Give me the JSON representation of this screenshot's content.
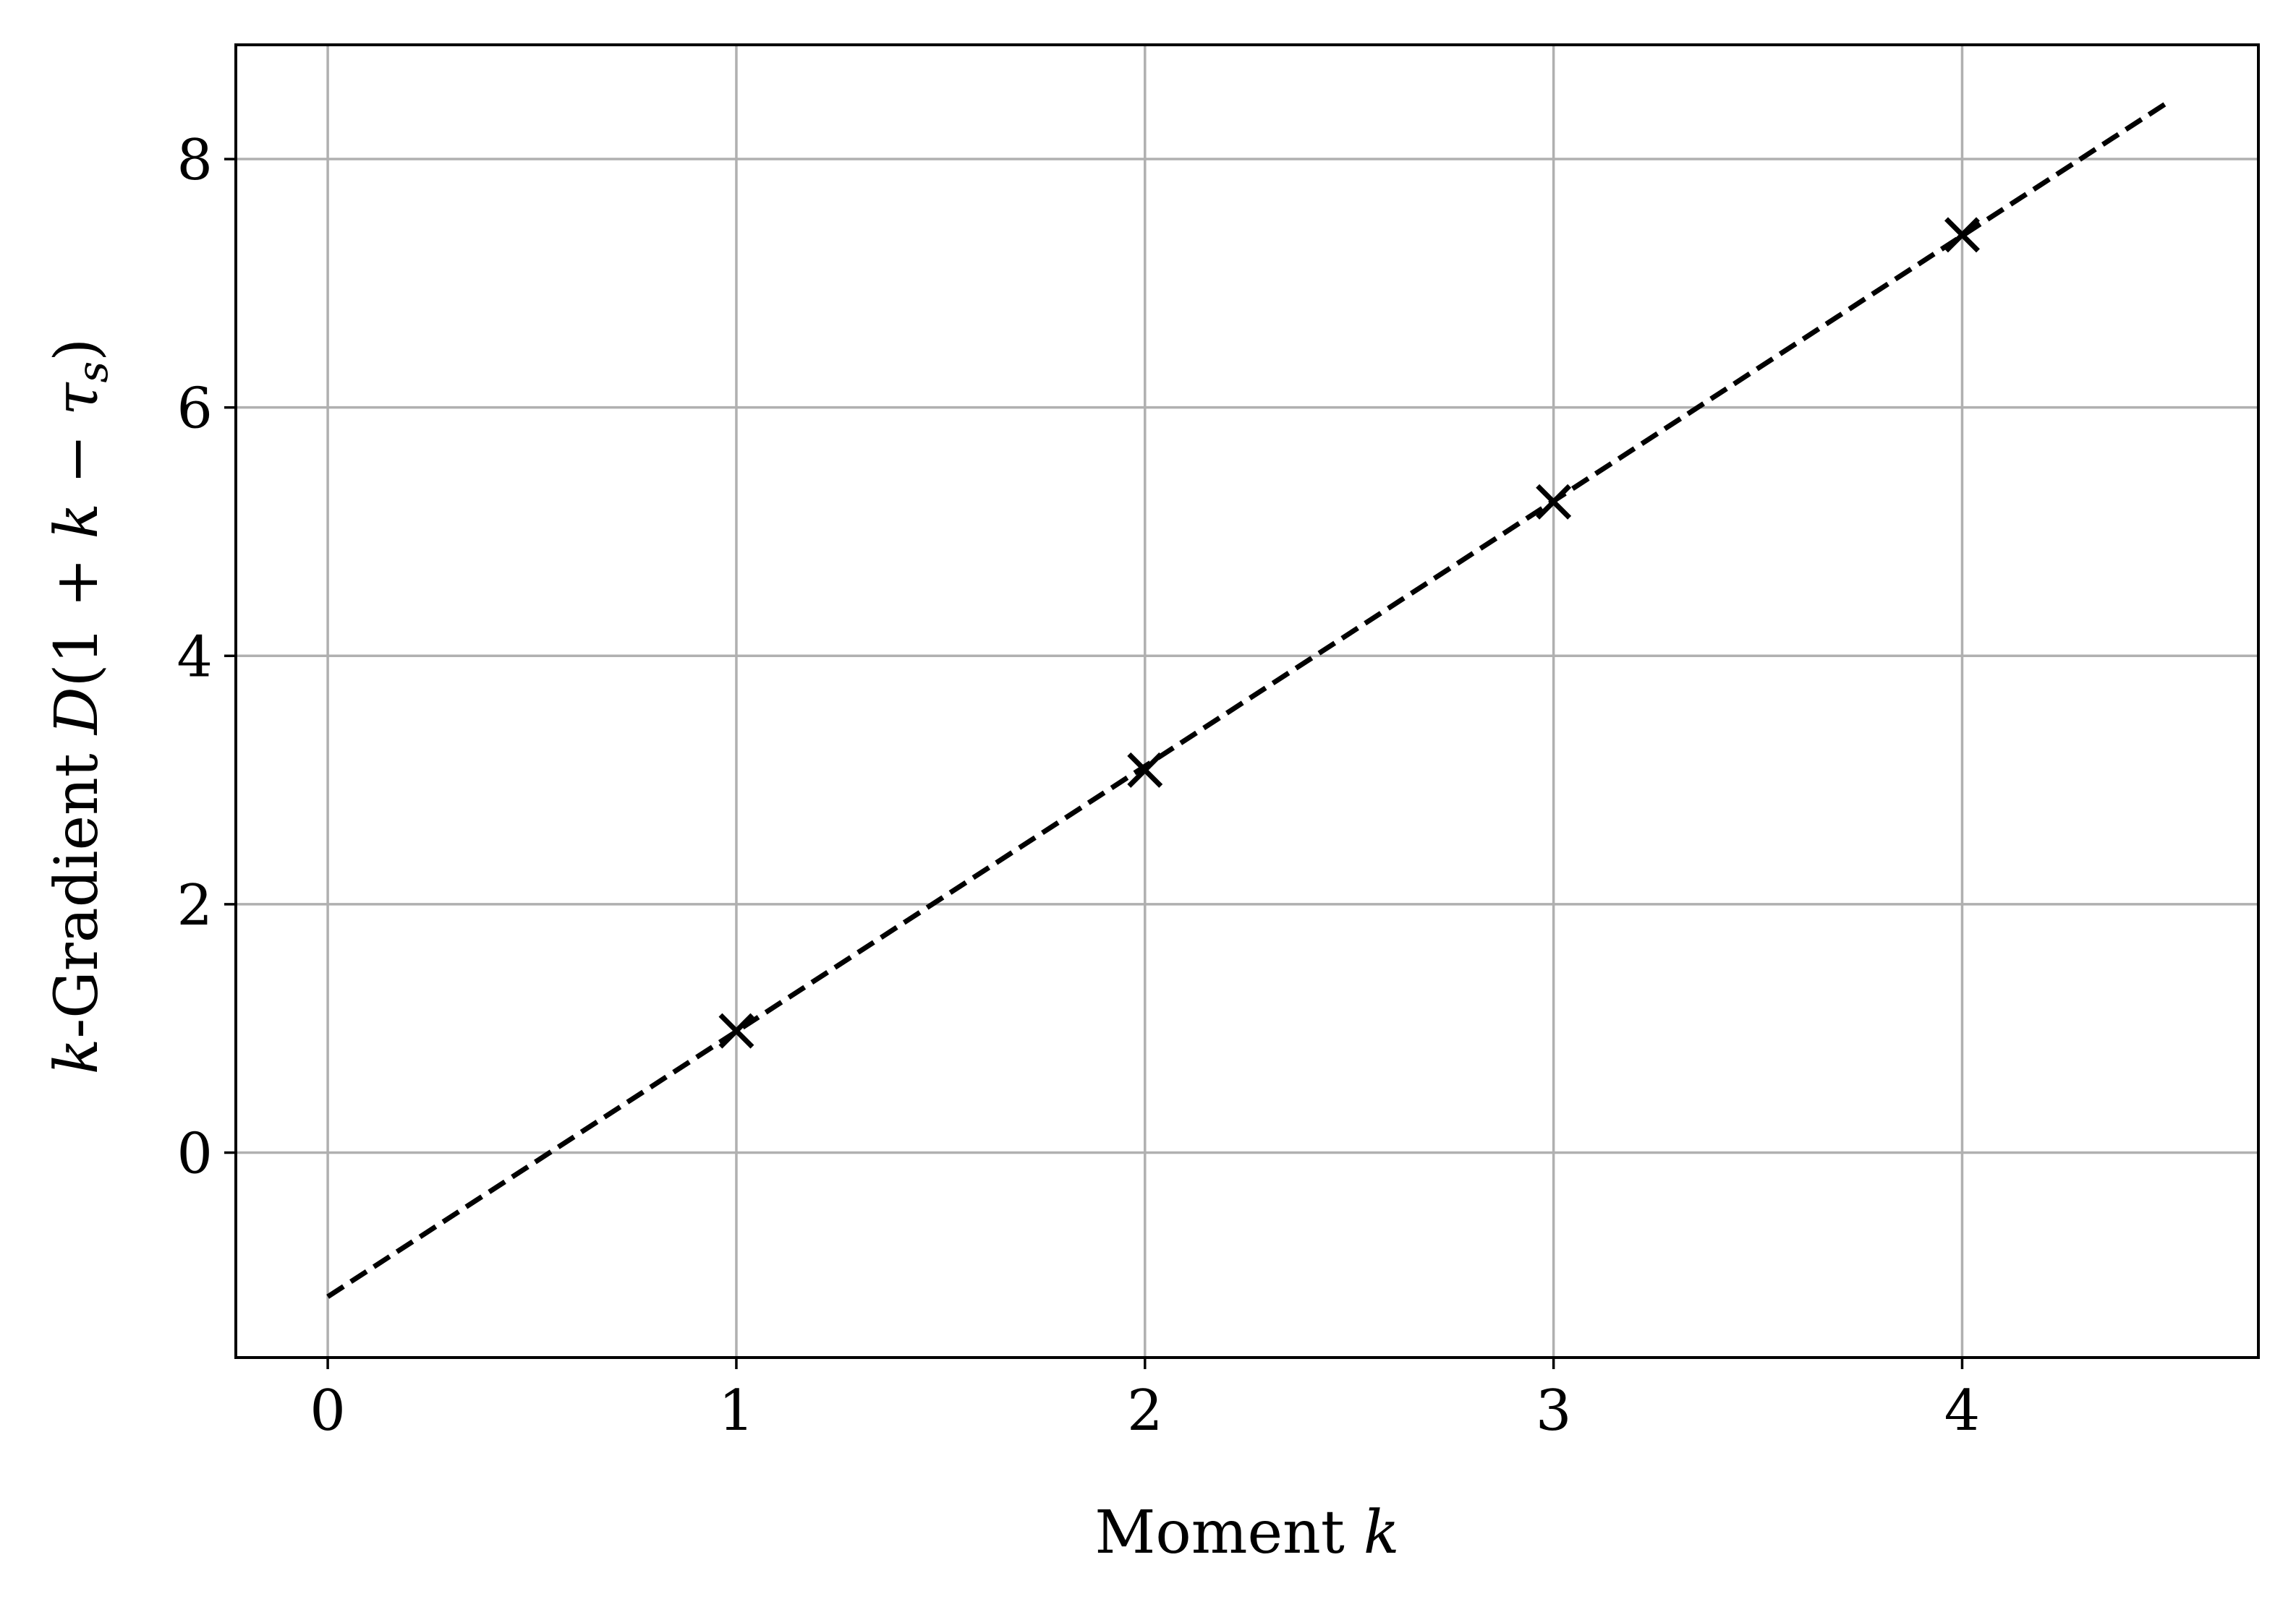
{
  "chart_data": {
    "type": "scatter",
    "title": "",
    "xlabel": "Moment k",
    "xlabel_parts": {
      "text": "Moment ",
      "var": "k"
    },
    "ylabel": "k-Gradient D(1 + k − τs)",
    "ylabel_parts": {
      "k": "k",
      "dash_text": "-Gradient ",
      "D": "D",
      "open": "(1 + ",
      "k2": "k",
      "minus": " − ",
      "tau": "τ",
      "sub": "s",
      "close": ")"
    },
    "xlim": [
      -0.225,
      4.725
    ],
    "ylim": [
      -1.65,
      8.92
    ],
    "xticks": [
      0,
      1,
      2,
      3,
      4
    ],
    "yticks": [
      0,
      2,
      4,
      6,
      8
    ],
    "xtick_labels": [
      "0",
      "1",
      "2",
      "3",
      "4"
    ],
    "ytick_labels": [
      "0",
      "2",
      "4",
      "6",
      "8"
    ],
    "grid": true,
    "series": [
      {
        "kind": "points",
        "marker": "x",
        "color": "#000000",
        "x": [
          1,
          2,
          3,
          4
        ],
        "y": [
          0.98,
          3.08,
          5.24,
          7.39
        ]
      },
      {
        "kind": "fit-line",
        "style": "dashed",
        "color": "#000000",
        "x": [
          0,
          4.5
        ],
        "y": [
          -1.16,
          8.45
        ]
      }
    ]
  },
  "colors": {
    "grid": "#b0b0b0",
    "axes": "#000000",
    "background": "#ffffff"
  }
}
